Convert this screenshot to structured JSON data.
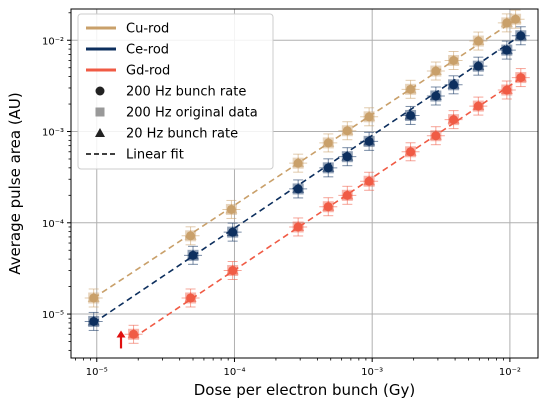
{
  "chart_data": {
    "type": "scatter",
    "title": "",
    "xlabel": "Dose per electron bunch (Gy)",
    "ylabel": "Average pulse area (AU)",
    "xscale": "log",
    "yscale": "log",
    "xlim": [
      6.5e-06,
      0.016
    ],
    "ylim": [
      3.3e-06,
      0.022
    ],
    "grid": true,
    "legend_position": "top-left",
    "x_ticks": [
      {
        "value": 1e-05,
        "label": "10⁻⁵"
      },
      {
        "value": 0.0001,
        "label": "10⁻⁴"
      },
      {
        "value": 0.001,
        "label": "10⁻³"
      },
      {
        "value": 0.01,
        "label": "10⁻²"
      }
    ],
    "y_ticks": [
      {
        "value": 1e-05,
        "label": "10⁻⁵"
      },
      {
        "value": 0.0001,
        "label": "10⁻⁴"
      },
      {
        "value": 0.001,
        "label": "10⁻³"
      },
      {
        "value": 0.01,
        "label": "10⁻²"
      }
    ],
    "series": [
      {
        "name": "Cu-rod",
        "color": "#c9a06a",
        "points": [
          {
            "x": 9.5e-06,
            "y": 1.5e-05
          },
          {
            "x": 4.8e-05,
            "y": 7.2e-05
          },
          {
            "x": 9.5e-05,
            "y": 0.00014
          },
          {
            "x": 0.00029,
            "y": 0.00045
          },
          {
            "x": 0.00048,
            "y": 0.00075
          },
          {
            "x": 0.00066,
            "y": 0.00102
          },
          {
            "x": 0.00095,
            "y": 0.00145
          },
          {
            "x": 0.0019,
            "y": 0.0029
          },
          {
            "x": 0.0029,
            "y": 0.0046
          },
          {
            "x": 0.0039,
            "y": 0.006
          },
          {
            "x": 0.0059,
            "y": 0.0098
          },
          {
            "x": 0.0095,
            "y": 0.0155
          },
          {
            "x": 0.011,
            "y": 0.017
          }
        ],
        "fit": [
          [
            9.5e-06,
            1.5e-05
          ],
          [
            0.0115,
            0.0175
          ]
        ]
      },
      {
        "name": "Ce-rod",
        "color": "#0d2f5e",
        "points": [
          {
            "x": 9.5e-06,
            "y": 8.3e-06
          },
          {
            "x": 5e-05,
            "y": 4.4e-05
          },
          {
            "x": 9.7e-05,
            "y": 7.9e-05
          },
          {
            "x": 0.00029,
            "y": 0.000235
          },
          {
            "x": 0.00048,
            "y": 0.0004
          },
          {
            "x": 0.00066,
            "y": 0.00053
          },
          {
            "x": 0.00095,
            "y": 0.00078
          },
          {
            "x": 0.0019,
            "y": 0.0015
          },
          {
            "x": 0.0029,
            "y": 0.00245
          },
          {
            "x": 0.0039,
            "y": 0.00325
          },
          {
            "x": 0.0059,
            "y": 0.0052
          },
          {
            "x": 0.0095,
            "y": 0.0078
          },
          {
            "x": 0.012,
            "y": 0.0112
          }
        ],
        "fit": [
          [
            9.5e-06,
            8e-06
          ],
          [
            0.0125,
            0.0118
          ]
        ]
      },
      {
        "name": "Gd-rod",
        "color": "#f05b45",
        "points": [
          {
            "x": 1.85e-05,
            "y": 6e-06
          },
          {
            "x": 4.8e-05,
            "y": 1.5e-05
          },
          {
            "x": 9.7e-05,
            "y": 3e-05
          },
          {
            "x": 0.00029,
            "y": 9e-05
          },
          {
            "x": 0.00048,
            "y": 0.00015
          },
          {
            "x": 0.00066,
            "y": 0.0002
          },
          {
            "x": 0.00095,
            "y": 0.000285
          },
          {
            "x": 0.0019,
            "y": 0.0006
          },
          {
            "x": 0.0029,
            "y": 0.0009
          },
          {
            "x": 0.0039,
            "y": 0.00135
          },
          {
            "x": 0.0059,
            "y": 0.0019
          },
          {
            "x": 0.0095,
            "y": 0.00285
          },
          {
            "x": 0.012,
            "y": 0.0039
          }
        ],
        "fit": [
          [
            1.85e-05,
            5.5e-06
          ],
          [
            0.0125,
            0.004
          ]
        ]
      }
    ],
    "arrow_annotation": {
      "x": 1.5e-05,
      "y_from": 4.2e-06,
      "y_to": 6.6e-06,
      "color": "#e01010"
    },
    "legend": [
      {
        "label": "Cu-rod",
        "kind": "line",
        "color": "#c9a06a"
      },
      {
        "label": "Ce-rod",
        "kind": "line",
        "color": "#0d2f5e"
      },
      {
        "label": "Gd-rod",
        "kind": "line",
        "color": "#f05b45"
      },
      {
        "label": "200 Hz bunch rate",
        "kind": "circle",
        "color": "#222222"
      },
      {
        "label": "200 Hz original data",
        "kind": "square",
        "color": "#999999"
      },
      {
        "label": "20 Hz bunch rate",
        "kind": "triangle",
        "color": "#222222"
      },
      {
        "label": "Linear fit",
        "kind": "dashed",
        "color": "#000000"
      }
    ]
  }
}
